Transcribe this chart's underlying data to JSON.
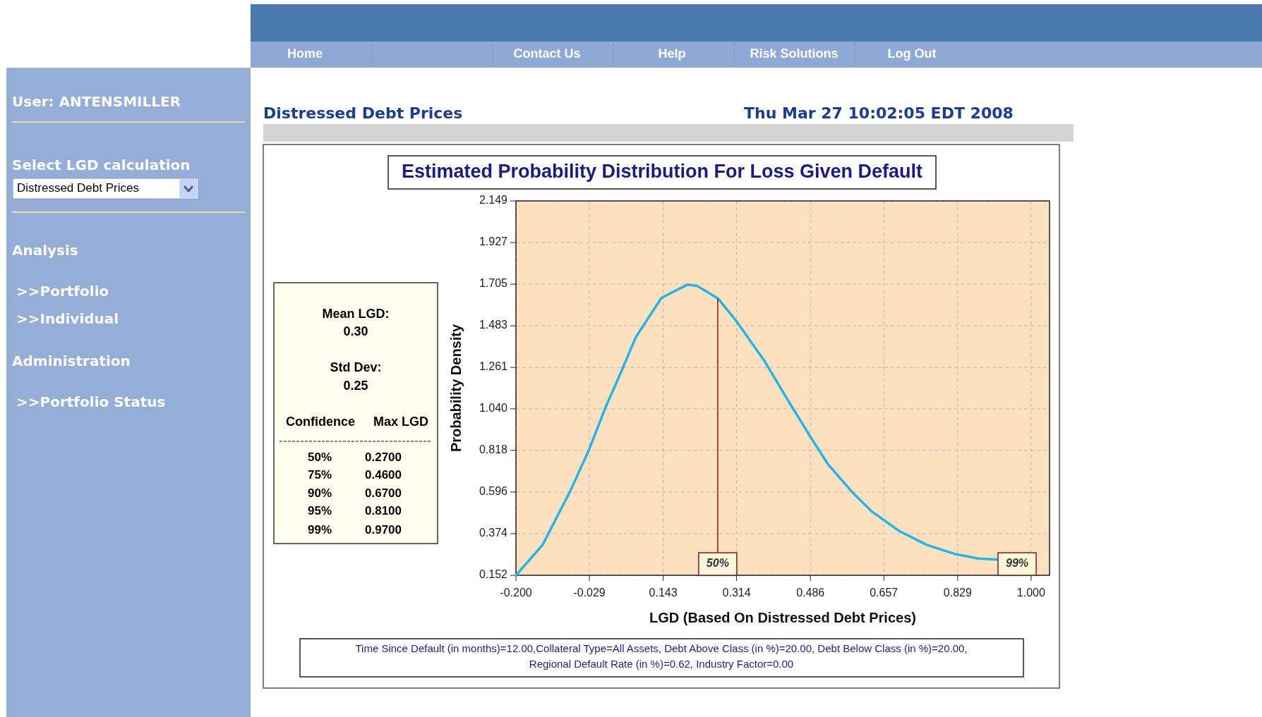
{
  "chart_data": {
    "type": "line",
    "title": "Estimated Probability Distribution For Loss Given Default",
    "subtitle": "Distressed Debt Prices",
    "xlabel": "LGD (Based On Distressed Debt Prices)",
    "ylabel": "Probability Density",
    "x": [
      -0.2,
      -0.138,
      -0.074,
      -0.032,
      0.0095,
      0.046,
      0.079,
      0.139,
      0.199,
      0.222,
      0.271,
      0.314,
      0.379,
      0.434,
      0.485,
      0.526,
      0.582,
      0.628,
      0.693,
      0.757,
      0.822,
      0.877,
      0.923
    ],
    "series": [
      {
        "color": "#1fb6ea",
        "values": [
          0.152,
          0.314,
          0.599,
          0.81,
          1.052,
          1.242,
          1.421,
          1.632,
          1.702,
          1.696,
          1.628,
          1.506,
          1.295,
          1.084,
          0.894,
          0.747,
          0.599,
          0.494,
          0.388,
          0.314,
          0.266,
          0.241,
          0.236
        ]
      }
    ],
    "xlim": [
      -0.2,
      1.043
    ],
    "ylim": [
      0.152,
      2.149
    ],
    "xticks": [
      {
        "value": -0.2,
        "label": "-0.200"
      },
      -0.029,
      0.143,
      0.314,
      0.486,
      0.657,
      0.829,
      {
        "value": 1,
        "label": "1.000"
      }
    ],
    "yticks": [
      0.152,
      0.374,
      0.596,
      0.818,
      {
        "value": 1.04,
        "label": "1.040"
      },
      1.261,
      1.483,
      1.705,
      1.927,
      2.149
    ],
    "grid": true,
    "ref_lines": [
      {
        "axis": "x",
        "value": 0.27,
        "color": "#8b1a1a"
      }
    ],
    "annotations": [
      "Home",
      "Contact Us",
      "Help",
      "Risk Solutions",
      "Log Out",
      "User: ANTENSMILLER",
      "Select LGD calculation",
      "Distressed Debt Prices",
      "Analysis",
      ">>Portfolio",
      ">>Individual",
      "Administration",
      ">>Portfolio Status",
      "Thu Mar 27 10:02:05 EDT 2008",
      "Mean LGD:",
      "0.30",
      "Std Dev:",
      "0.25",
      "Confidence",
      "Max LGD",
      "50%",
      "0.2700",
      "75%",
      "0.4600",
      "90%",
      "0.6700",
      "95%",
      "0.8100",
      "99%",
      "0.9700",
      "Time Since Default (in months)=12.00,Collateral Type=All Assets, Debt Above Class (in %)=20.00, Debt Below Class (in %)=20.00,",
      "Regional Default Rate (in %)=0.62, Industry Factor=0.00",
      "50%",
      "99%"
    ]
  }
}
